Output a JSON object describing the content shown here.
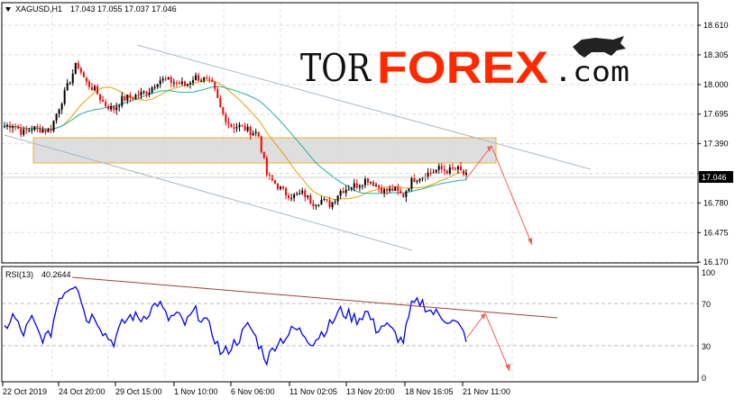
{
  "header": {
    "symbol_label": "XAGUSD,H1",
    "ohlc": "17.043 17.055 17.037 17.046",
    "menu_icon": "triangle-down-icon"
  },
  "logo": {
    "part1": "TOR",
    "part2": "FOREX",
    "part3": ".com",
    "icon": "bull-icon"
  },
  "colors": {
    "bull_candle": "#000000",
    "bear_candle": "#ff0000",
    "ma_fast": "#e8a000",
    "ma_slow": "#20b0a0",
    "zone_fill": "#d8d8d8",
    "zone_border": "#f0b030",
    "channel": "#aab8c8",
    "arrow": "#f06050",
    "rsi_line": "#0000ff",
    "rsi_trend": "#a04040"
  },
  "chart_data": [
    {
      "type": "candlestick",
      "title": "XAGUSD,H1",
      "ylim": [
        16.17,
        18.7
      ],
      "y_ticks": [
        "18.610",
        "18.305",
        "18.000",
        "17.695",
        "17.390",
        "17.085",
        "16.780",
        "16.475",
        "16.170"
      ],
      "current_price": "17.046",
      "x_ticks": [
        "22 Oct 2019",
        "24 Oct 20:00",
        "29 Oct 15:00",
        "1 Nov 10:00",
        "6 Nov 06:00",
        "11 Nov 02:05",
        "13 Nov 20:00",
        "18 Nov 16:05",
        "21 Nov 11:00"
      ],
      "close_approx": [
        17.57,
        17.59,
        17.5,
        17.55,
        17.54,
        17.52,
        17.76,
        17.99,
        18.22,
        18.02,
        17.94,
        17.8,
        17.74,
        17.85,
        17.87,
        17.9,
        17.94,
        18.05,
        18.04,
        18.02,
        17.99,
        18.08,
        18.05,
        17.99,
        17.71,
        17.57,
        17.57,
        17.52,
        17.5,
        17.06,
        16.97,
        16.88,
        16.85,
        16.88,
        16.78,
        16.81,
        16.76,
        16.9,
        16.94,
        16.97,
        17.03,
        16.97,
        16.9,
        16.92,
        16.85,
        17.02,
        17.06,
        17.09,
        17.13,
        17.11,
        17.13,
        17.05
      ],
      "zone": [
        17.22,
        17.44
      ]
    },
    {
      "type": "line",
      "title": "RSI(13)",
      "value_label": "40.2644",
      "ylim": [
        0,
        100
      ],
      "y_ticks": [
        "100",
        "70",
        "30",
        "0"
      ],
      "values_approx": [
        46,
        59,
        40,
        55,
        38,
        38,
        76,
        85,
        91,
        55,
        59,
        42,
        33,
        50,
        59,
        55,
        63,
        72,
        55,
        59,
        50,
        63,
        55,
        42,
        21,
        29,
        38,
        50,
        33,
        16,
        33,
        38,
        46,
        42,
        33,
        42,
        50,
        63,
        59,
        55,
        63,
        46,
        50,
        42,
        33,
        68,
        72,
        63,
        59,
        55,
        50,
        38
      ]
    }
  ]
}
